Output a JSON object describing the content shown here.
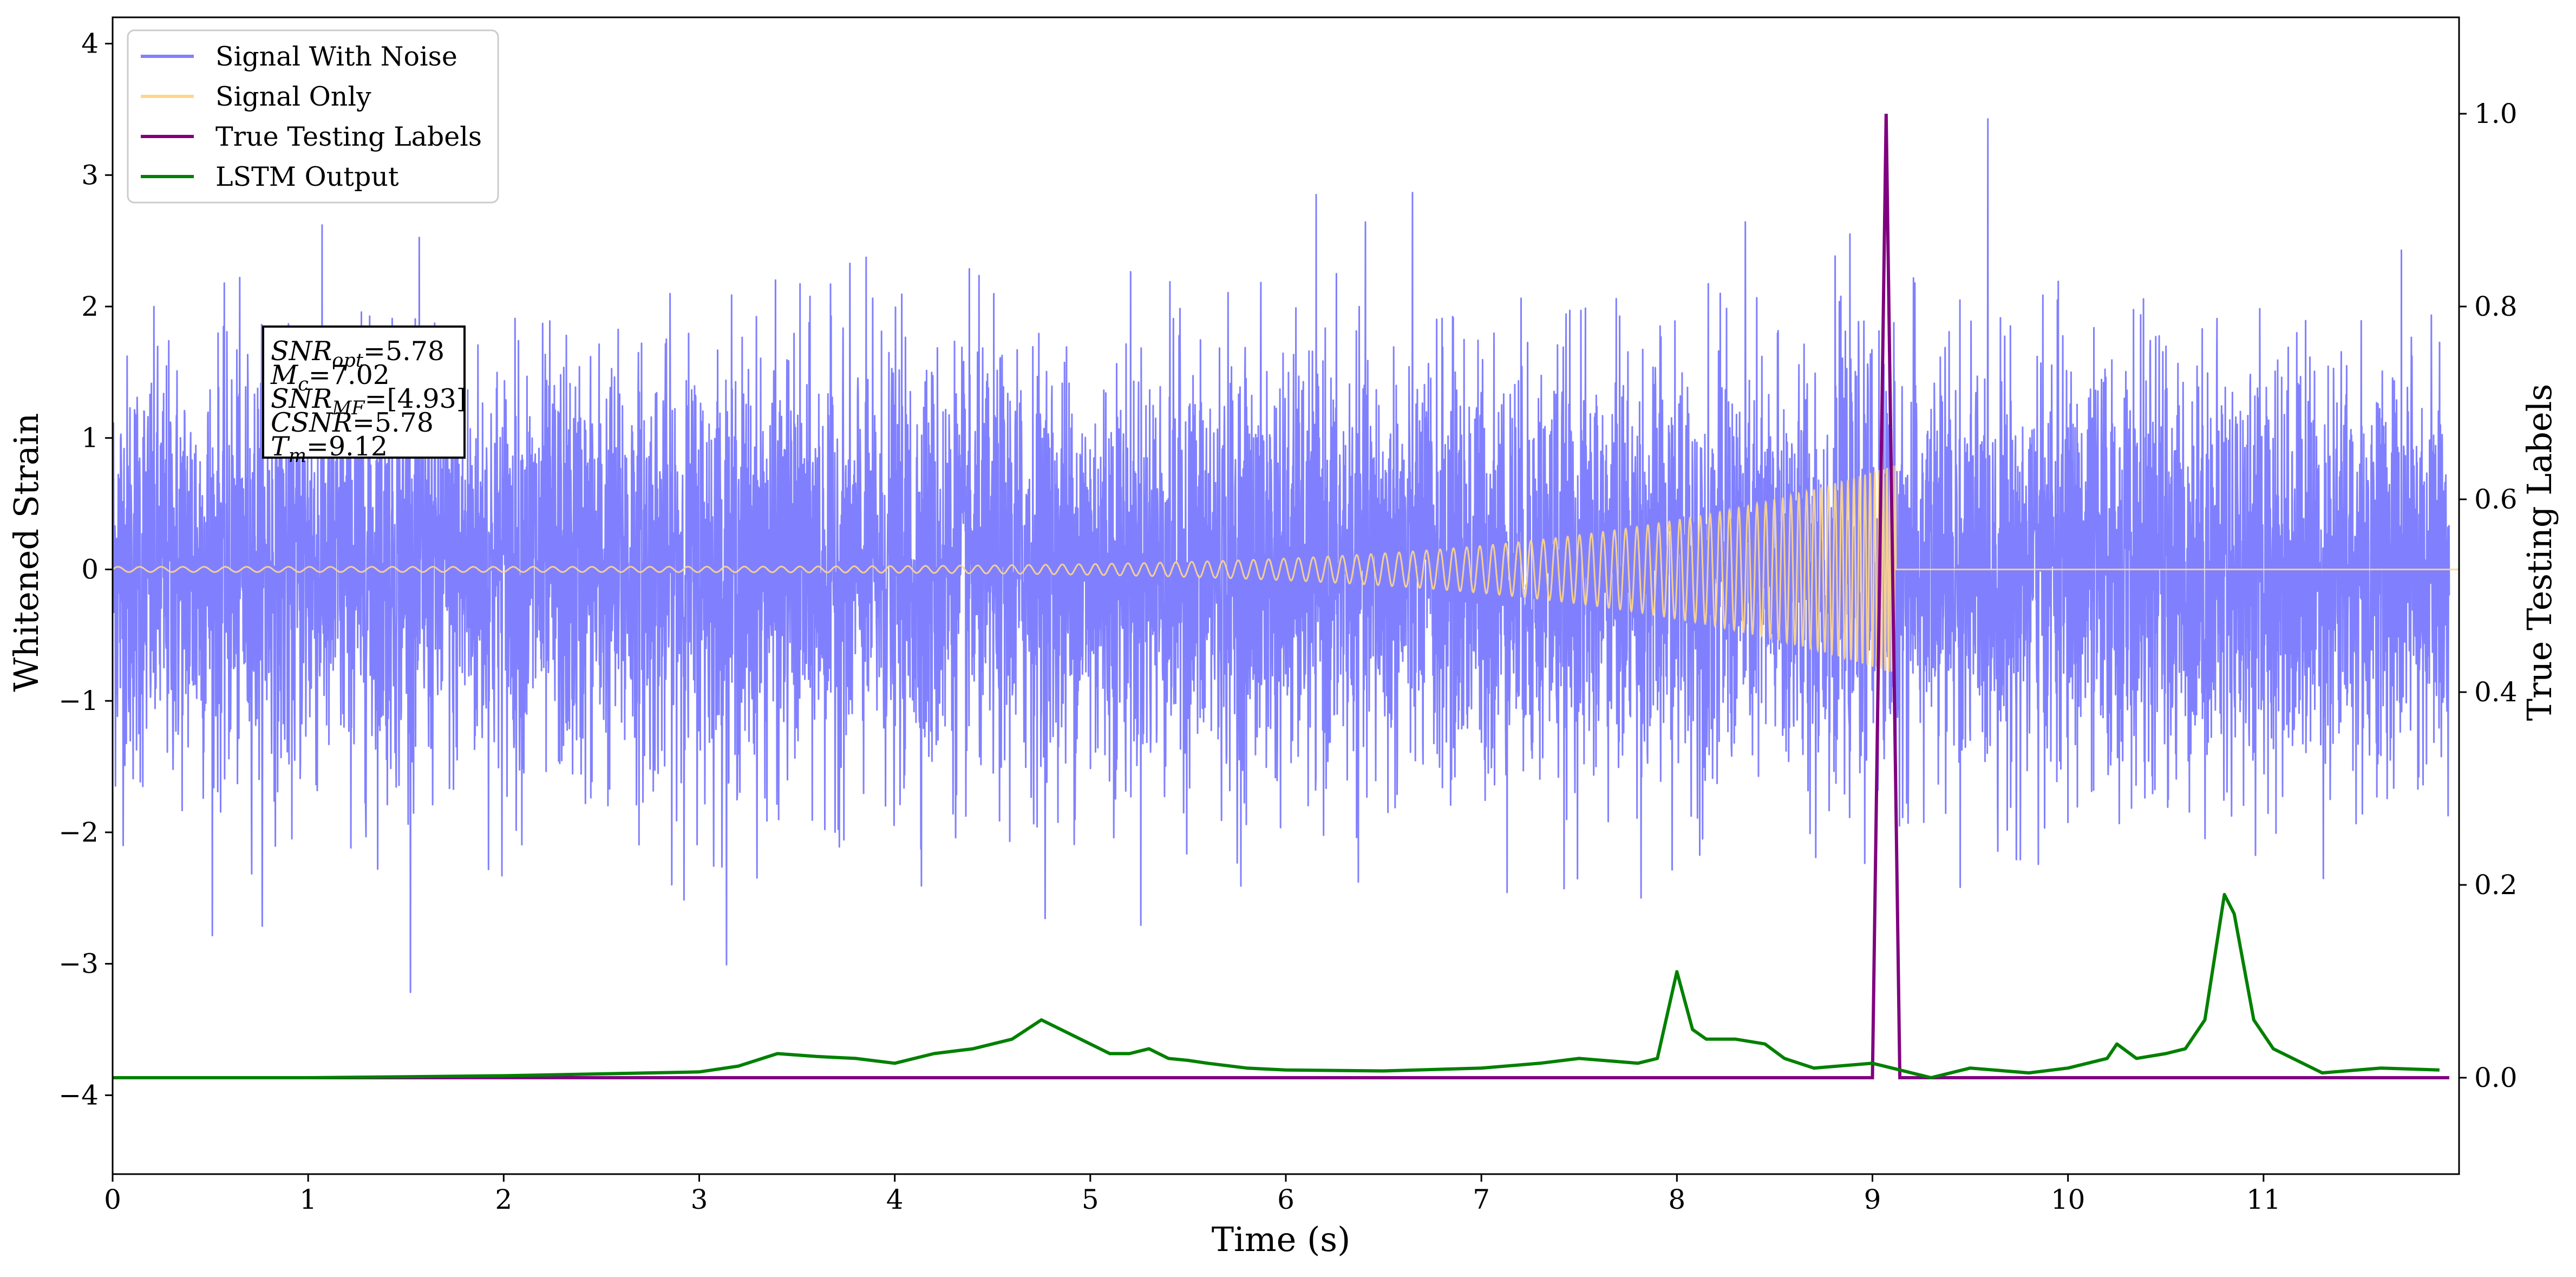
{
  "chart_data": {
    "type": "line",
    "xlabel": "Time (s)",
    "ylabel": "Whitened Strain",
    "y2label": "True Testing Labels",
    "xlim": [
      0,
      12.0
    ],
    "ylim": [
      -4.6,
      4.2
    ],
    "y2lim": [
      -0.1,
      1.1
    ],
    "xticks": [
      "0",
      "1",
      "2",
      "3",
      "4",
      "5",
      "6",
      "7",
      "8",
      "9",
      "10",
      "11"
    ],
    "yticks": [
      "4",
      "3",
      "2",
      "1",
      "0",
      "−1",
      "−2",
      "−3",
      "−4"
    ],
    "y2ticks": [
      "1.0",
      "0.8",
      "0.6",
      "0.4",
      "0.2",
      "0.0"
    ],
    "grid": false,
    "legend_position": "top-left",
    "series": [
      {
        "name": "Signal With Noise",
        "color": "#8080ff",
        "axis": "left",
        "description_stats": {
          "std": 0.8,
          "min": -4.2,
          "max": 3.8,
          "x_range": [
            0,
            11.95
          ]
        }
      },
      {
        "name": "Signal Only",
        "color": "#ffd68a",
        "axis": "left",
        "chirp": {
          "amp_start": 0.02,
          "amp_end": 0.8,
          "t_end": 9.12
        }
      },
      {
        "name": "True Testing Labels",
        "color": "#800080",
        "axis": "right",
        "x": [
          0,
          9.0,
          9.07,
          9.14,
          11.95
        ],
        "y": [
          0,
          0,
          1.0,
          0,
          0
        ]
      },
      {
        "name": "LSTM Output",
        "color": "#008000",
        "axis": "right",
        "x": [
          0,
          1,
          2,
          2.5,
          3,
          3.2,
          3.4,
          3.6,
          3.8,
          4.0,
          4.2,
          4.4,
          4.6,
          4.75,
          4.9,
          5.0,
          5.1,
          5.2,
          5.3,
          5.4,
          5.5,
          5.6,
          5.8,
          6.0,
          6.5,
          7.0,
          7.3,
          7.5,
          7.8,
          7.9,
          8.0,
          8.08,
          8.15,
          8.3,
          8.45,
          8.55,
          8.7,
          9.0,
          9.1,
          9.3,
          9.5,
          9.8,
          10.0,
          10.1,
          10.2,
          10.25,
          10.35,
          10.5,
          10.6,
          10.7,
          10.8,
          10.85,
          10.95,
          11.05,
          11.3,
          11.6,
          11.9
        ],
        "y": [
          0,
          0,
          0.002,
          0.004,
          0.006,
          0.012,
          0.025,
          0.022,
          0.02,
          0.015,
          0.025,
          0.03,
          0.04,
          0.06,
          0.045,
          0.035,
          0.025,
          0.025,
          0.03,
          0.02,
          0.018,
          0.015,
          0.01,
          0.008,
          0.007,
          0.01,
          0.015,
          0.02,
          0.015,
          0.02,
          0.11,
          0.05,
          0.04,
          0.04,
          0.035,
          0.02,
          0.01,
          0.015,
          0.01,
          0.0,
          0.01,
          0.005,
          0.01,
          0.015,
          0.02,
          0.035,
          0.02,
          0.025,
          0.03,
          0.06,
          0.19,
          0.17,
          0.06,
          0.03,
          0.005,
          0.01,
          0.008
        ]
      }
    ],
    "annotation": [
      {
        "base": "SNR",
        "sub": "opt",
        "value": "=5.78"
      },
      {
        "base": "M",
        "sub": "c",
        "value": "=7.02"
      },
      {
        "base": "SNR",
        "sub": "MF",
        "value": "=[4.93]"
      },
      {
        "base": "CSNR",
        "sub": "",
        "value": "=5.78"
      },
      {
        "base": "T",
        "sub": "m",
        "value": "=9.12"
      }
    ]
  }
}
